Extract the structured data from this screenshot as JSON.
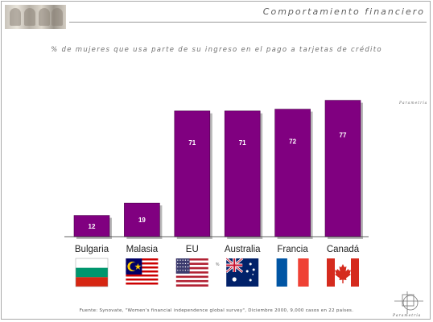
{
  "header": {
    "title": "Comportamiento financiero",
    "brand_name": "Parametría"
  },
  "chart_data": {
    "type": "bar",
    "title": "% de mujeres que usa parte de su ingreso en el pago a tarjetas de crédito",
    "categories": [
      "Bulgaria",
      "Malasia",
      "EU",
      "Australia",
      "Francia",
      "Canadá"
    ],
    "values": [
      12,
      19,
      71,
      71,
      72,
      77
    ],
    "ylim": [
      0,
      80
    ],
    "bar_color": "#800080",
    "grid": false,
    "legend": "none"
  },
  "flags": [
    "bulgaria-flag-icon",
    "malaysia-flag-icon",
    "usa-flag-icon",
    "australia-flag-icon",
    "france-flag-icon",
    "canada-flag-icon"
  ],
  "small_mark": "%",
  "footnote": "Fuente: Synovate, \"Women's financial independence global survey\", Diciembre 2000, 9,000 casos en 22 países."
}
